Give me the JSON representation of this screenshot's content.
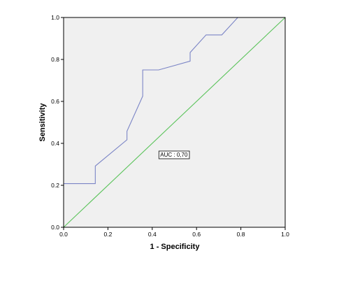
{
  "chart_data": {
    "type": "line",
    "title": "",
    "xlabel": "1 - Specificity",
    "ylabel": "Sensitivity",
    "xlim": [
      0,
      1
    ],
    "ylim": [
      0,
      1
    ],
    "xticks": [
      "0.0",
      "0.2",
      "0.4",
      "0.6",
      "0.8",
      "1.0"
    ],
    "yticks": [
      "0.0",
      "0.2",
      "0.4",
      "0.6",
      "0.8",
      "1.0"
    ],
    "grid": false,
    "legend": "none",
    "plot_background": "#f0f0f0",
    "series": [
      {
        "color": "#7b85c6",
        "x": [
          0,
          0.143,
          0.143,
          0.286,
          0.286,
          0.357,
          0.357,
          0.429,
          0.571,
          0.571,
          0.643,
          0.714,
          0.786,
          1.0
        ],
        "y": [
          0.208,
          0.208,
          0.292,
          0.417,
          0.458,
          0.625,
          0.75,
          0.75,
          0.792,
          0.833,
          0.917,
          0.917,
          1.0,
          1.0
        ]
      },
      {
        "color": "#5ac35a",
        "x": [
          0,
          1
        ],
        "y": [
          0,
          1
        ]
      }
    ],
    "annotations": [
      {
        "text": "AUC : 0,70",
        "x": 0.43,
        "y": 0.35
      }
    ]
  }
}
